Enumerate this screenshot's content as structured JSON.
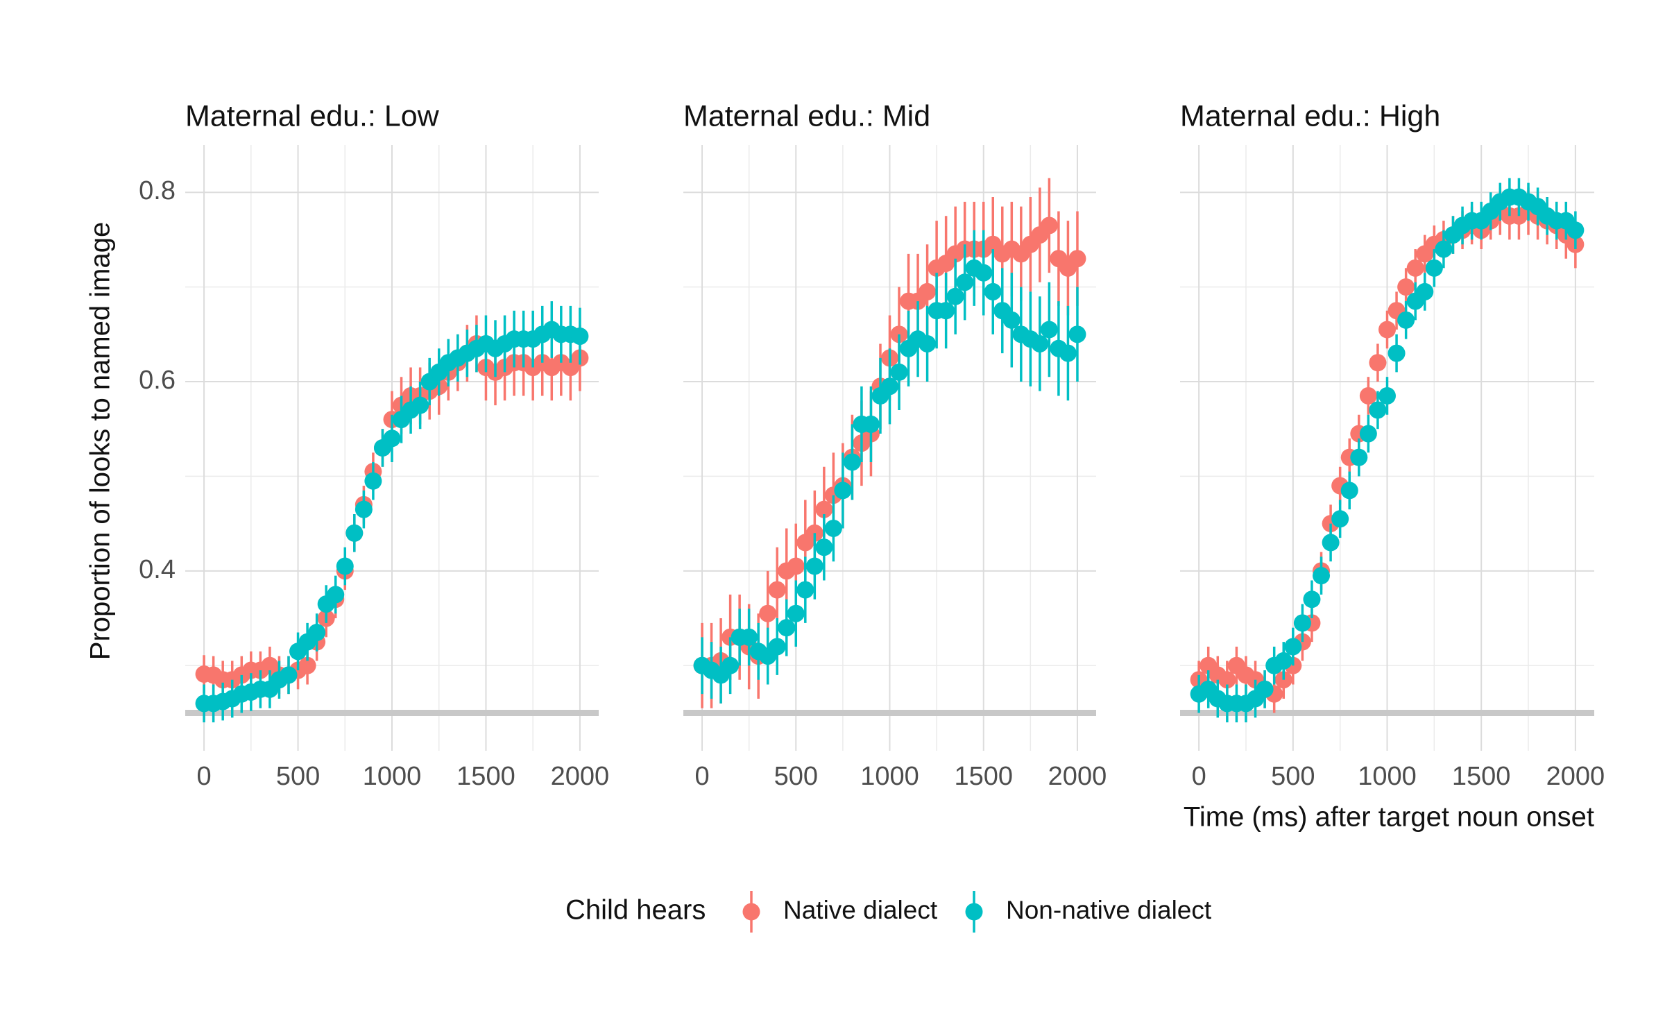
{
  "chart_data": [
    {
      "type": "scatter",
      "title": "Maternal edu.: Low",
      "y_label": "Proportion of looks to named image",
      "legend_title": "Child hears",
      "ytick_labels": true,
      "x": [
        0,
        50,
        100,
        150,
        200,
        250,
        300,
        350,
        400,
        450,
        500,
        550,
        600,
        650,
        700,
        750,
        800,
        850,
        900,
        950,
        1000,
        1050,
        1100,
        1150,
        1200,
        1250,
        1300,
        1350,
        1400,
        1450,
        1500,
        1550,
        1600,
        1650,
        1700,
        1750,
        1800,
        1850,
        1900,
        1950,
        2000
      ],
      "xlim": [
        -100,
        2100
      ],
      "ylim": [
        0.21,
        0.85
      ],
      "xticks": [
        0,
        500,
        1000,
        1500,
        2000
      ],
      "yticks": [
        0.4,
        0.6,
        0.8
      ],
      "xminor": [
        250,
        750,
        1250,
        1750
      ],
      "yminor": [
        0.3,
        0.5,
        0.7
      ],
      "hline": 0.25,
      "grid": true,
      "series": [
        {
          "name": "Native dialect",
          "color": "#F8766D",
          "values": [
            0.291,
            0.29,
            0.285,
            0.285,
            0.29,
            0.295,
            0.295,
            0.3,
            0.29,
            0.29,
            0.295,
            0.3,
            0.325,
            0.35,
            0.37,
            0.4,
            0.44,
            0.47,
            0.505,
            0.53,
            0.56,
            0.575,
            0.585,
            0.585,
            0.59,
            0.595,
            0.61,
            0.62,
            0.63,
            0.64,
            0.615,
            0.61,
            0.615,
            0.62,
            0.62,
            0.615,
            0.62,
            0.615,
            0.62,
            0.615,
            0.625
          ],
          "errors": [
            0.02,
            0.02,
            0.02,
            0.02,
            0.02,
            0.02,
            0.02,
            0.02,
            0.02,
            0.02,
            0.02,
            0.02,
            0.02,
            0.02,
            0.02,
            0.02,
            0.02,
            0.02,
            0.02,
            0.02,
            0.03,
            0.03,
            0.03,
            0.03,
            0.03,
            0.03,
            0.03,
            0.03,
            0.03,
            0.03,
            0.035,
            0.035,
            0.035,
            0.035,
            0.035,
            0.035,
            0.035,
            0.035,
            0.035,
            0.035,
            0.035
          ]
        },
        {
          "name": "Non-native dialect",
          "color": "#00BFC4",
          "values": [
            0.26,
            0.26,
            0.262,
            0.265,
            0.27,
            0.272,
            0.275,
            0.275,
            0.285,
            0.29,
            0.315,
            0.325,
            0.335,
            0.365,
            0.375,
            0.405,
            0.44,
            0.465,
            0.495,
            0.53,
            0.54,
            0.56,
            0.57,
            0.575,
            0.6,
            0.61,
            0.62,
            0.625,
            0.63,
            0.635,
            0.64,
            0.635,
            0.64,
            0.645,
            0.645,
            0.645,
            0.65,
            0.655,
            0.65,
            0.65,
            0.648
          ],
          "errors": [
            0.02,
            0.02,
            0.02,
            0.02,
            0.02,
            0.02,
            0.02,
            0.02,
            0.02,
            0.02,
            0.02,
            0.02,
            0.02,
            0.02,
            0.02,
            0.02,
            0.02,
            0.02,
            0.02,
            0.02,
            0.025,
            0.025,
            0.025,
            0.025,
            0.025,
            0.025,
            0.025,
            0.025,
            0.025,
            0.025,
            0.03,
            0.03,
            0.03,
            0.03,
            0.03,
            0.03,
            0.03,
            0.03,
            0.03,
            0.03,
            0.03
          ]
        }
      ]
    },
    {
      "type": "scatter",
      "title": "Maternal edu.: Mid",
      "ytick_labels": false,
      "x": [
        0,
        50,
        100,
        150,
        200,
        250,
        300,
        350,
        400,
        450,
        500,
        550,
        600,
        650,
        700,
        750,
        800,
        850,
        900,
        950,
        1000,
        1050,
        1100,
        1150,
        1200,
        1250,
        1300,
        1350,
        1400,
        1450,
        1500,
        1550,
        1600,
        1650,
        1700,
        1750,
        1800,
        1850,
        1900,
        1950,
        2000
      ],
      "xlim": [
        -100,
        2100
      ],
      "ylim": [
        0.21,
        0.85
      ],
      "xticks": [
        0,
        500,
        1000,
        1500,
        2000
      ],
      "yticks": [
        0.4,
        0.6,
        0.8
      ],
      "xminor": [
        250,
        750,
        1250,
        1750
      ],
      "yminor": [
        0.3,
        0.5,
        0.7
      ],
      "hline": 0.25,
      "grid": true,
      "series": [
        {
          "name": "Native dialect",
          "color": "#F8766D",
          "values": [
            0.3,
            0.3,
            0.305,
            0.33,
            0.33,
            0.32,
            0.31,
            0.355,
            0.38,
            0.4,
            0.405,
            0.43,
            0.44,
            0.465,
            0.48,
            0.49,
            0.52,
            0.535,
            0.545,
            0.595,
            0.625,
            0.65,
            0.685,
            0.685,
            0.695,
            0.72,
            0.725,
            0.735,
            0.74,
            0.74,
            0.74,
            0.745,
            0.735,
            0.74,
            0.735,
            0.745,
            0.755,
            0.765,
            0.73,
            0.72,
            0.73
          ],
          "errors": [
            0.045,
            0.045,
            0.045,
            0.045,
            0.045,
            0.045,
            0.045,
            0.045,
            0.045,
            0.045,
            0.045,
            0.045,
            0.045,
            0.045,
            0.045,
            0.045,
            0.045,
            0.045,
            0.045,
            0.045,
            0.045,
            0.05,
            0.05,
            0.05,
            0.05,
            0.05,
            0.05,
            0.05,
            0.05,
            0.05,
            0.05,
            0.05,
            0.05,
            0.05,
            0.05,
            0.05,
            0.05,
            0.05,
            0.05,
            0.05,
            0.05
          ]
        },
        {
          "name": "Non-native dialect",
          "color": "#00BFC4",
          "values": [
            0.3,
            0.295,
            0.29,
            0.3,
            0.33,
            0.33,
            0.315,
            0.31,
            0.32,
            0.34,
            0.355,
            0.38,
            0.405,
            0.425,
            0.445,
            0.485,
            0.515,
            0.555,
            0.555,
            0.585,
            0.595,
            0.61,
            0.635,
            0.645,
            0.64,
            0.675,
            0.675,
            0.69,
            0.705,
            0.72,
            0.715,
            0.695,
            0.675,
            0.665,
            0.65,
            0.645,
            0.64,
            0.655,
            0.635,
            0.63,
            0.65
          ],
          "errors": [
            0.03,
            0.03,
            0.03,
            0.03,
            0.03,
            0.03,
            0.03,
            0.03,
            0.03,
            0.03,
            0.035,
            0.035,
            0.035,
            0.035,
            0.035,
            0.04,
            0.04,
            0.04,
            0.04,
            0.04,
            0.04,
            0.04,
            0.04,
            0.04,
            0.04,
            0.04,
            0.04,
            0.04,
            0.04,
            0.04,
            0.045,
            0.045,
            0.045,
            0.05,
            0.05,
            0.05,
            0.05,
            0.05,
            0.05,
            0.05,
            0.05
          ]
        }
      ]
    },
    {
      "type": "scatter",
      "title": "Maternal edu.: High",
      "x_label": "Time (ms) after target noun onset",
      "ytick_labels": false,
      "x": [
        0,
        50,
        100,
        150,
        200,
        250,
        300,
        350,
        400,
        450,
        500,
        550,
        600,
        650,
        700,
        750,
        800,
        850,
        900,
        950,
        1000,
        1050,
        1100,
        1150,
        1200,
        1250,
        1300,
        1350,
        1400,
        1450,
        1500,
        1550,
        1600,
        1650,
        1700,
        1750,
        1800,
        1850,
        1900,
        1950,
        2000
      ],
      "xlim": [
        -100,
        2100
      ],
      "ylim": [
        0.21,
        0.85
      ],
      "xticks": [
        0,
        500,
        1000,
        1500,
        2000
      ],
      "yticks": [
        0.4,
        0.6,
        0.8
      ],
      "xminor": [
        250,
        750,
        1250,
        1750
      ],
      "yminor": [
        0.3,
        0.5,
        0.7
      ],
      "hline": 0.25,
      "grid": true,
      "series": [
        {
          "name": "Native dialect",
          "color": "#F8766D",
          "values": [
            0.285,
            0.3,
            0.29,
            0.285,
            0.3,
            0.29,
            0.285,
            0.275,
            0.27,
            0.285,
            0.3,
            0.325,
            0.345,
            0.4,
            0.45,
            0.49,
            0.52,
            0.545,
            0.585,
            0.62,
            0.655,
            0.675,
            0.7,
            0.72,
            0.735,
            0.745,
            0.75,
            0.755,
            0.76,
            0.765,
            0.76,
            0.77,
            0.78,
            0.775,
            0.775,
            0.78,
            0.775,
            0.77,
            0.765,
            0.755,
            0.745
          ],
          "errors": [
            0.02,
            0.02,
            0.02,
            0.02,
            0.02,
            0.02,
            0.02,
            0.02,
            0.02,
            0.02,
            0.02,
            0.02,
            0.02,
            0.02,
            0.02,
            0.02,
            0.02,
            0.02,
            0.02,
            0.02,
            0.02,
            0.02,
            0.02,
            0.02,
            0.02,
            0.02,
            0.02,
            0.02,
            0.02,
            0.02,
            0.02,
            0.02,
            0.025,
            0.025,
            0.025,
            0.025,
            0.025,
            0.025,
            0.025,
            0.025,
            0.025
          ]
        },
        {
          "name": "Non-native dialect",
          "color": "#00BFC4",
          "values": [
            0.27,
            0.275,
            0.265,
            0.26,
            0.26,
            0.26,
            0.265,
            0.275,
            0.3,
            0.305,
            0.32,
            0.345,
            0.37,
            0.395,
            0.43,
            0.455,
            0.485,
            0.52,
            0.545,
            0.57,
            0.585,
            0.63,
            0.665,
            0.685,
            0.695,
            0.72,
            0.74,
            0.755,
            0.765,
            0.77,
            0.77,
            0.78,
            0.79,
            0.795,
            0.795,
            0.79,
            0.785,
            0.775,
            0.77,
            0.77,
            0.76
          ],
          "errors": [
            0.02,
            0.02,
            0.02,
            0.02,
            0.02,
            0.02,
            0.02,
            0.02,
            0.02,
            0.02,
            0.02,
            0.02,
            0.02,
            0.02,
            0.02,
            0.02,
            0.02,
            0.02,
            0.02,
            0.02,
            0.02,
            0.02,
            0.02,
            0.02,
            0.02,
            0.02,
            0.02,
            0.02,
            0.02,
            0.02,
            0.02,
            0.02,
            0.02,
            0.02,
            0.02,
            0.02,
            0.02,
            0.02,
            0.02,
            0.02,
            0.02
          ]
        }
      ]
    }
  ]
}
